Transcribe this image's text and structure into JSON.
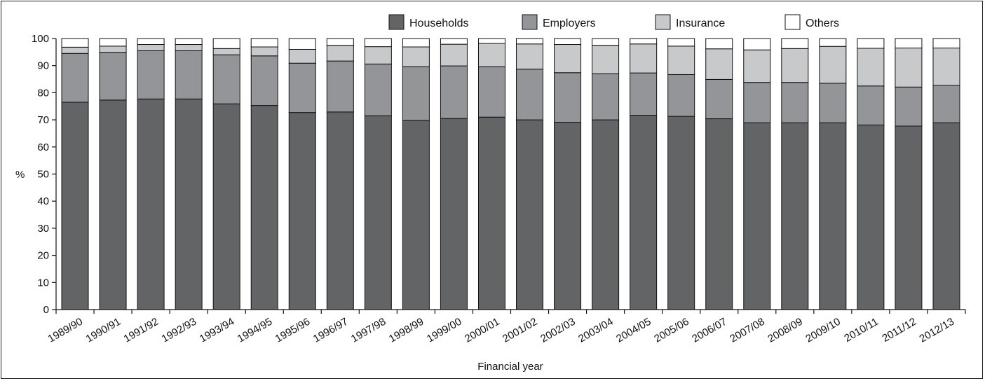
{
  "chart_data": {
    "type": "bar",
    "stacked": true,
    "xlabel": "Financial year",
    "ylabel": "%",
    "ylim": [
      0,
      100
    ],
    "yticks": [
      0,
      10,
      20,
      30,
      40,
      50,
      60,
      70,
      80,
      90,
      100
    ],
    "grid": false,
    "legend_position": "top",
    "categories": [
      "1989/90",
      "1990/91",
      "1991/92",
      "1992/93",
      "1993/94",
      "1994/95",
      "1995/96",
      "1996/97",
      "1997/98",
      "1998/99",
      "1999/00",
      "2000/01",
      "2001/02",
      "2002/03",
      "2003/04",
      "2004/05",
      "2005/06",
      "2006/07",
      "2007/08",
      "2008/09",
      "2009/10",
      "2010/11",
      "2011/12",
      "2012/13"
    ],
    "series": [
      {
        "name": "Households",
        "color": "#636466",
        "values": [
          76.5,
          77.3,
          77.7,
          77.7,
          75.9,
          75.3,
          72.7,
          72.9,
          71.5,
          69.8,
          70.5,
          71.0,
          70.0,
          69.1,
          70.0,
          71.7,
          71.3,
          70.4,
          68.9,
          68.9,
          68.9,
          68.1,
          67.7,
          68.9
        ]
      },
      {
        "name": "Employers",
        "color": "#939598",
        "values": [
          18.0,
          17.6,
          17.8,
          17.8,
          18.1,
          18.3,
          18.2,
          18.8,
          19.1,
          19.8,
          19.4,
          18.6,
          18.7,
          18.3,
          17.0,
          15.6,
          15.4,
          14.5,
          14.9,
          14.9,
          14.6,
          14.4,
          14.4,
          13.8
        ]
      },
      {
        "name": "Insurance",
        "color": "#c8c9ca",
        "values": [
          2.3,
          2.3,
          2.3,
          2.3,
          2.3,
          3.3,
          5.1,
          5.8,
          6.4,
          7.3,
          8.0,
          8.6,
          9.3,
          10.4,
          10.5,
          10.7,
          10.5,
          11.3,
          12.0,
          12.5,
          13.6,
          13.9,
          14.4,
          13.8
        ]
      },
      {
        "name": "Others",
        "color": "#ffffff",
        "values": [
          3.2,
          2.8,
          2.2,
          2.2,
          3.7,
          3.1,
          4.0,
          2.5,
          3.0,
          3.1,
          2.1,
          1.8,
          2.0,
          2.2,
          2.5,
          2.0,
          2.8,
          3.8,
          4.2,
          3.7,
          2.9,
          3.6,
          3.5,
          3.5
        ]
      }
    ]
  }
}
